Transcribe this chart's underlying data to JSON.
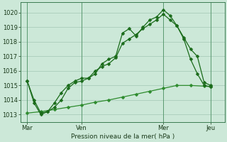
{
  "bg_color": "#cce8d8",
  "plot_bg_color": "#cce8d8",
  "grid_color": "#aaccbb",
  "line_color1": "#1a6b1a",
  "line_color2": "#1a6b1a",
  "line_color3": "#2d8b2d",
  "marker_size": 2.5,
  "ylim": [
    1012.5,
    1020.7
  ],
  "yticks": [
    1013,
    1014,
    1015,
    1016,
    1017,
    1018,
    1019,
    1020
  ],
  "xlabel": "Pression niveau de la mer( hPa )",
  "xtick_labels": [
    "Mar",
    "Ven",
    "Mer",
    "Jeu"
  ],
  "xtick_positions": [
    0,
    8,
    20,
    27
  ],
  "xlim": [
    -1,
    29
  ],
  "series1_x": [
    0,
    1,
    2,
    3,
    4,
    5,
    6,
    7,
    8,
    9,
    10,
    11,
    12,
    13,
    14,
    15,
    16,
    17,
    18,
    19,
    20,
    21,
    22,
    23,
    24,
    25,
    26,
    27
  ],
  "series1_y": [
    1015.3,
    1013.8,
    1013.0,
    1013.2,
    1013.8,
    1014.5,
    1015.0,
    1015.3,
    1015.5,
    1015.5,
    1015.8,
    1016.5,
    1016.8,
    1017.0,
    1018.6,
    1018.9,
    1018.4,
    1019.0,
    1019.5,
    1019.7,
    1020.2,
    1019.8,
    1019.1,
    1018.3,
    1017.5,
    1017.0,
    1015.2,
    1015.0
  ],
  "series2_x": [
    0,
    1,
    2,
    3,
    4,
    5,
    6,
    7,
    8,
    9,
    10,
    11,
    12,
    13,
    14,
    15,
    16,
    17,
    18,
    19,
    20,
    21,
    22,
    23,
    24,
    25,
    26,
    27
  ],
  "series2_y": [
    1015.3,
    1014.0,
    1013.1,
    1013.2,
    1013.5,
    1014.0,
    1014.8,
    1015.2,
    1015.3,
    1015.5,
    1016.0,
    1016.3,
    1016.5,
    1016.9,
    1017.9,
    1018.2,
    1018.5,
    1018.9,
    1019.2,
    1019.5,
    1019.9,
    1019.5,
    1019.1,
    1018.2,
    1016.8,
    1015.8,
    1015.0,
    1014.9
  ],
  "series3_x": [
    0,
    2,
    4,
    6,
    8,
    10,
    12,
    14,
    16,
    18,
    20,
    22,
    24,
    26,
    27
  ],
  "series3_y": [
    1013.1,
    1013.2,
    1013.35,
    1013.5,
    1013.65,
    1013.85,
    1014.0,
    1014.2,
    1014.4,
    1014.6,
    1014.8,
    1015.0,
    1015.0,
    1014.95,
    1014.92
  ]
}
